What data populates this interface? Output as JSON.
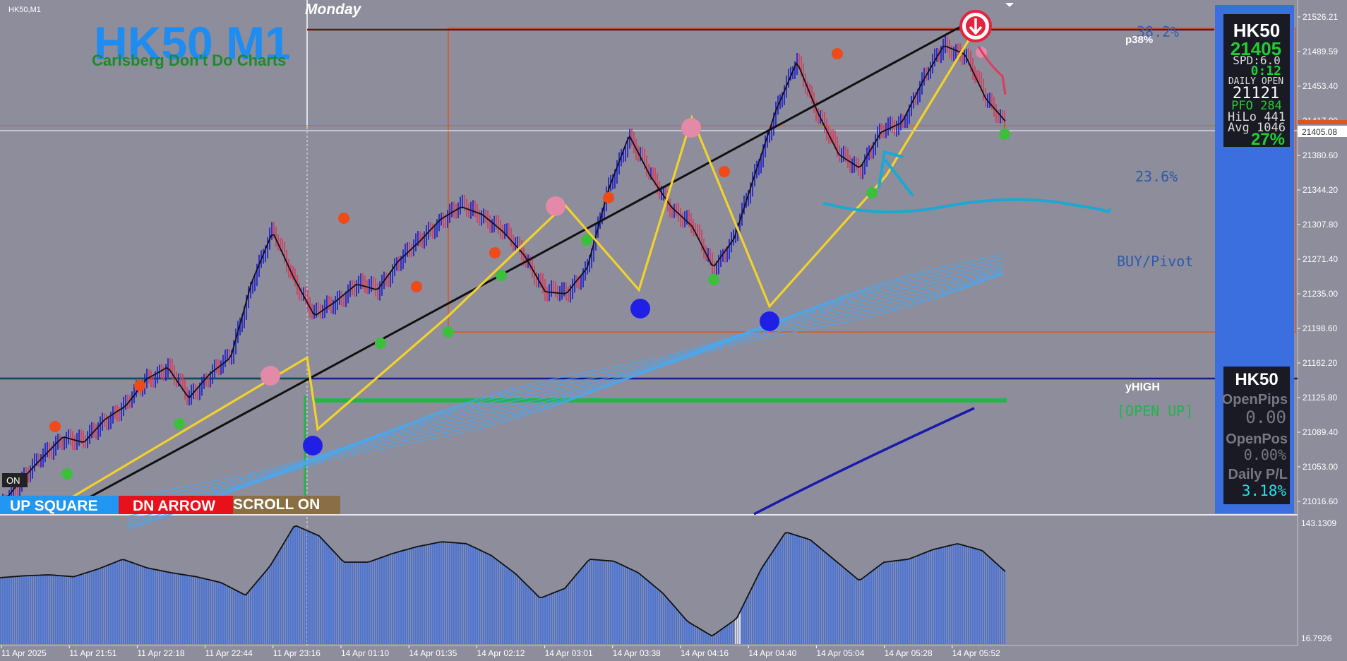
{
  "window": {
    "symbol_tf": "HK50,M1",
    "day_label": "Monday",
    "on_label": "ON"
  },
  "title": {
    "main": "HK50 M1",
    "sub": "Carlsberg Don't Do Charts"
  },
  "buttons": {
    "up_square": "UP SQUARE",
    "dn_arrow": "DN ARROW",
    "scroll": "SCROLL ON"
  },
  "levels": {
    "fib_382": "38.2%",
    "p38": "p38%",
    "fib_236": "23.6%",
    "buy_pivot": "BUY/Pivot",
    "yhigh": "yHIGH",
    "open_up": "[OPEN UP]"
  },
  "info_panel": {
    "symbol": "HK50",
    "price": "21405",
    "spread": "SPD:6.0",
    "timer": "0:12",
    "daily_open_label": "DAILY OPEN",
    "daily_open": "21121",
    "pfo": "PFO 284",
    "hilo": "HiLo 441",
    "avg": "Avg 1046",
    "pct": "27%"
  },
  "pos_panel": {
    "symbol": "HK50",
    "open_pips_label": "OpenPips",
    "open_pips": "0.00",
    "open_pos_label": "OpenPos",
    "open_pos": "0.00%",
    "daily_pl_label": "Daily P/L",
    "daily_pl": "3.18%"
  },
  "colors": {
    "bg": "#8d8d9c",
    "bull": "#1a1acc",
    "bear": "#d63a5a",
    "zigzag": "#f2d22a",
    "ribbon": "#4aa8f0",
    "panel": "#3b6fe0",
    "osc": "#4a74d8",
    "box": "#e0551c"
  },
  "chart_data": {
    "type": "line",
    "symbol": "HK50",
    "timeframe": "M1",
    "x_tick_labels": [
      "11 Apr 2025",
      "11 Apr 21:51",
      "11 Apr 22:18",
      "11 Apr 22:44",
      "11 Apr 23:16",
      "14 Apr 01:10",
      "14 Apr 01:35",
      "14 Apr 02:12",
      "14 Apr 03:01",
      "14 Apr 03:38",
      "14 Apr 04:16",
      "14 Apr 04:40",
      "14 Apr 05:04",
      "14 Apr 05:28",
      "14 Apr 05:52"
    ],
    "y_tick_labels": [
      "21526.21",
      "21489.59",
      "21453.40",
      "21417.00",
      "21380.60",
      "21344.20",
      "21307.80",
      "21271.40",
      "21235.00",
      "21198.60",
      "21162.20",
      "21125.80",
      "21089.40",
      "21053.00",
      "21016.60"
    ],
    "ylim": [
      21000,
      21532
    ],
    "current_price": 21405.08,
    "price_path": [
      21008,
      21035,
      21058,
      21080,
      21074,
      21098,
      21112,
      21140,
      21152,
      21120,
      21145,
      21162,
      21240,
      21292,
      21245,
      21205,
      21220,
      21238,
      21232,
      21262,
      21282,
      21305,
      21318,
      21310,
      21292,
      21268,
      21230,
      21228,
      21255,
      21335,
      21392,
      21350,
      21318,
      21298,
      21255,
      21285,
      21352,
      21418,
      21468,
      21415,
      21372,
      21358,
      21395,
      21405,
      21448,
      21485,
      21476,
      21430,
      21405
    ],
    "zigzag": [
      21005,
      21162,
      21147,
      21080,
      21200,
      21315,
      21235,
      21412,
      21212,
      21490,
      21405
    ],
    "oscillator": {
      "ylim": [
        16.7926,
        143.1309
      ],
      "tick_labels": [
        "143.1309",
        "16.7926"
      ],
      "values": [
        85,
        87,
        88,
        86,
        94,
        104,
        95,
        90,
        86,
        80,
        67,
        97,
        139,
        128,
        101,
        101,
        110,
        117,
        122,
        120,
        108,
        89,
        64,
        74,
        104,
        102,
        90,
        69,
        40,
        25,
        43,
        94,
        132,
        124,
        103,
        82,
        101,
        104,
        114,
        120,
        113,
        90
      ]
    }
  }
}
